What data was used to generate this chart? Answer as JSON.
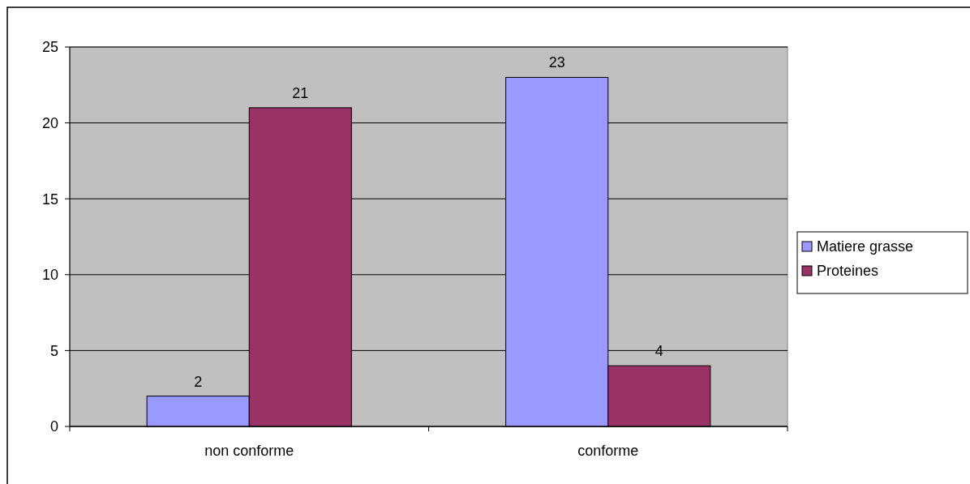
{
  "chart_data": {
    "type": "bar",
    "categories": [
      "non conforme",
      "conforme"
    ],
    "series": [
      {
        "name": "Matiere grasse",
        "color": "#9999ff",
        "values": [
          2,
          23
        ]
      },
      {
        "name": "Proteines",
        "color": "#993366",
        "values": [
          21,
          4
        ]
      }
    ],
    "ylim": [
      0,
      25
    ],
    "yticks": [
      0,
      5,
      10,
      15,
      20,
      25
    ],
    "grid": "y",
    "legend": "right",
    "data_labels": true
  }
}
